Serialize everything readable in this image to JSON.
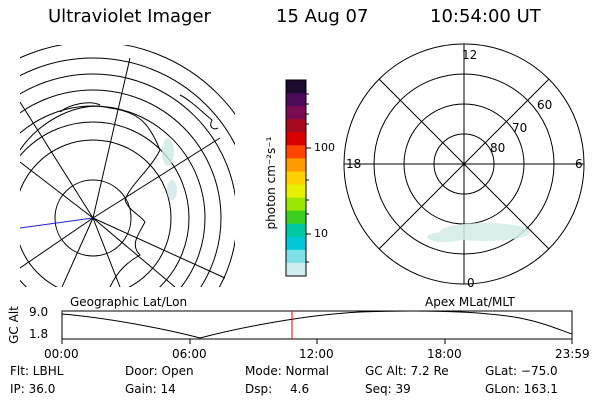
{
  "header": {
    "title": "Ultraviolet Imager",
    "date": "15 Aug 07",
    "time": "10:54:00 UT"
  },
  "geo_panel": {
    "caption": "Geographic Lat/Lon"
  },
  "mag_panel": {
    "caption": "Apex MLat/MLT",
    "mlt_labels": {
      "top": "12",
      "left": "18",
      "right": "6",
      "bottom": "0"
    },
    "lat_labels": [
      "60",
      "70",
      "80"
    ]
  },
  "colorbar": {
    "unit_label": "photon cm⁻²s⁻¹",
    "tick_100": "100",
    "tick_10": "10",
    "colors": [
      "#1a0a2e",
      "#4b0a5a",
      "#7a0a50",
      "#a50a20",
      "#d80000",
      "#ff4500",
      "#ff9a00",
      "#ffd000",
      "#e6f000",
      "#9ae600",
      "#3ccf20",
      "#00c8a0",
      "#00c8d8",
      "#7fe0e8",
      "#d0eef0"
    ]
  },
  "timeline": {
    "ylabel": "GC Alt",
    "ytick_top": "9.0",
    "ytick_bottom": "1.8",
    "xticks": [
      "00:00",
      "06:00",
      "12:00",
      "18:00",
      "23:59"
    ],
    "current_marker_color": "#e00000"
  },
  "info": {
    "row1": {
      "filter": "Flt: LBHL",
      "door": "Door: Open",
      "mode": "Mode: Normal",
      "gc_alt": "GC Alt: 7.2 Re",
      "glat": "GLat: −75.0"
    },
    "row2": {
      "ip": "IP: 36.0",
      "gain": "Gain: 14",
      "dsp_label": "Dsp:",
      "dsp_value": "4.6",
      "seq": "Seq: 39",
      "glon": "GLon: 163.1"
    }
  }
}
